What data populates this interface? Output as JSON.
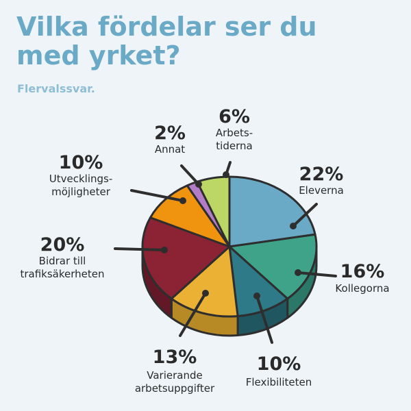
{
  "title": "Vilka fördelar ser du med yrket?",
  "subtitle": "Flervalssvar.",
  "chart_data": {
    "type": "pie",
    "title": "Vilka fördelar ser du med yrket?",
    "subtitle": "Flervalssvar.",
    "slices": [
      {
        "label": "Eleverna",
        "value": 22,
        "percent_text": "22%",
        "label_lines": [
          "Eleverna"
        ],
        "color": "#6aaac6",
        "side_color": "#4d8299"
      },
      {
        "label": "Kollegorna",
        "value": 16,
        "percent_text": "16%",
        "label_lines": [
          "Kollegorna"
        ],
        "color": "#3fa38a",
        "side_color": "#2c7868"
      },
      {
        "label": "Flexibiliteten",
        "value": 10,
        "percent_text": "10%",
        "label_lines": [
          "Flexibiliteten"
        ],
        "color": "#2e7a88",
        "side_color": "#1f5660"
      },
      {
        "label": "Varierande arbetsuppgifter",
        "value": 13,
        "percent_text": "13%",
        "label_lines": [
          "Varierande",
          "arbetsuppgifter"
        ],
        "color": "#ebb135",
        "side_color": "#b88a26"
      },
      {
        "label": "Bidrar till trafiksäkerheten",
        "value": 20,
        "percent_text": "20%",
        "label_lines": [
          "Bidrar till",
          "trafiksäkerheten"
        ],
        "color": "#8c2334",
        "side_color": "#621826"
      },
      {
        "label": "Utvecklingsmöjligheter",
        "value": 10,
        "percent_text": "10%",
        "label_lines": [
          "Utvecklings-",
          "möjligheter"
        ],
        "color": "#f0940f",
        "side_color": "#b86f0a"
      },
      {
        "label": "Annat",
        "value": 2,
        "percent_text": "2%",
        "label_lines": [
          "Annat"
        ],
        "color": "#b37cc6",
        "side_color": "#85599a"
      },
      {
        "label": "Arbetstiderna",
        "value": 6,
        "percent_text": "6%",
        "label_lines": [
          "Arbets-",
          "tiderna"
        ],
        "color": "#bdd766",
        "side_color": "#8ea14a"
      }
    ],
    "legend": "none",
    "start_angle": "12 o'clock, clockwise"
  }
}
